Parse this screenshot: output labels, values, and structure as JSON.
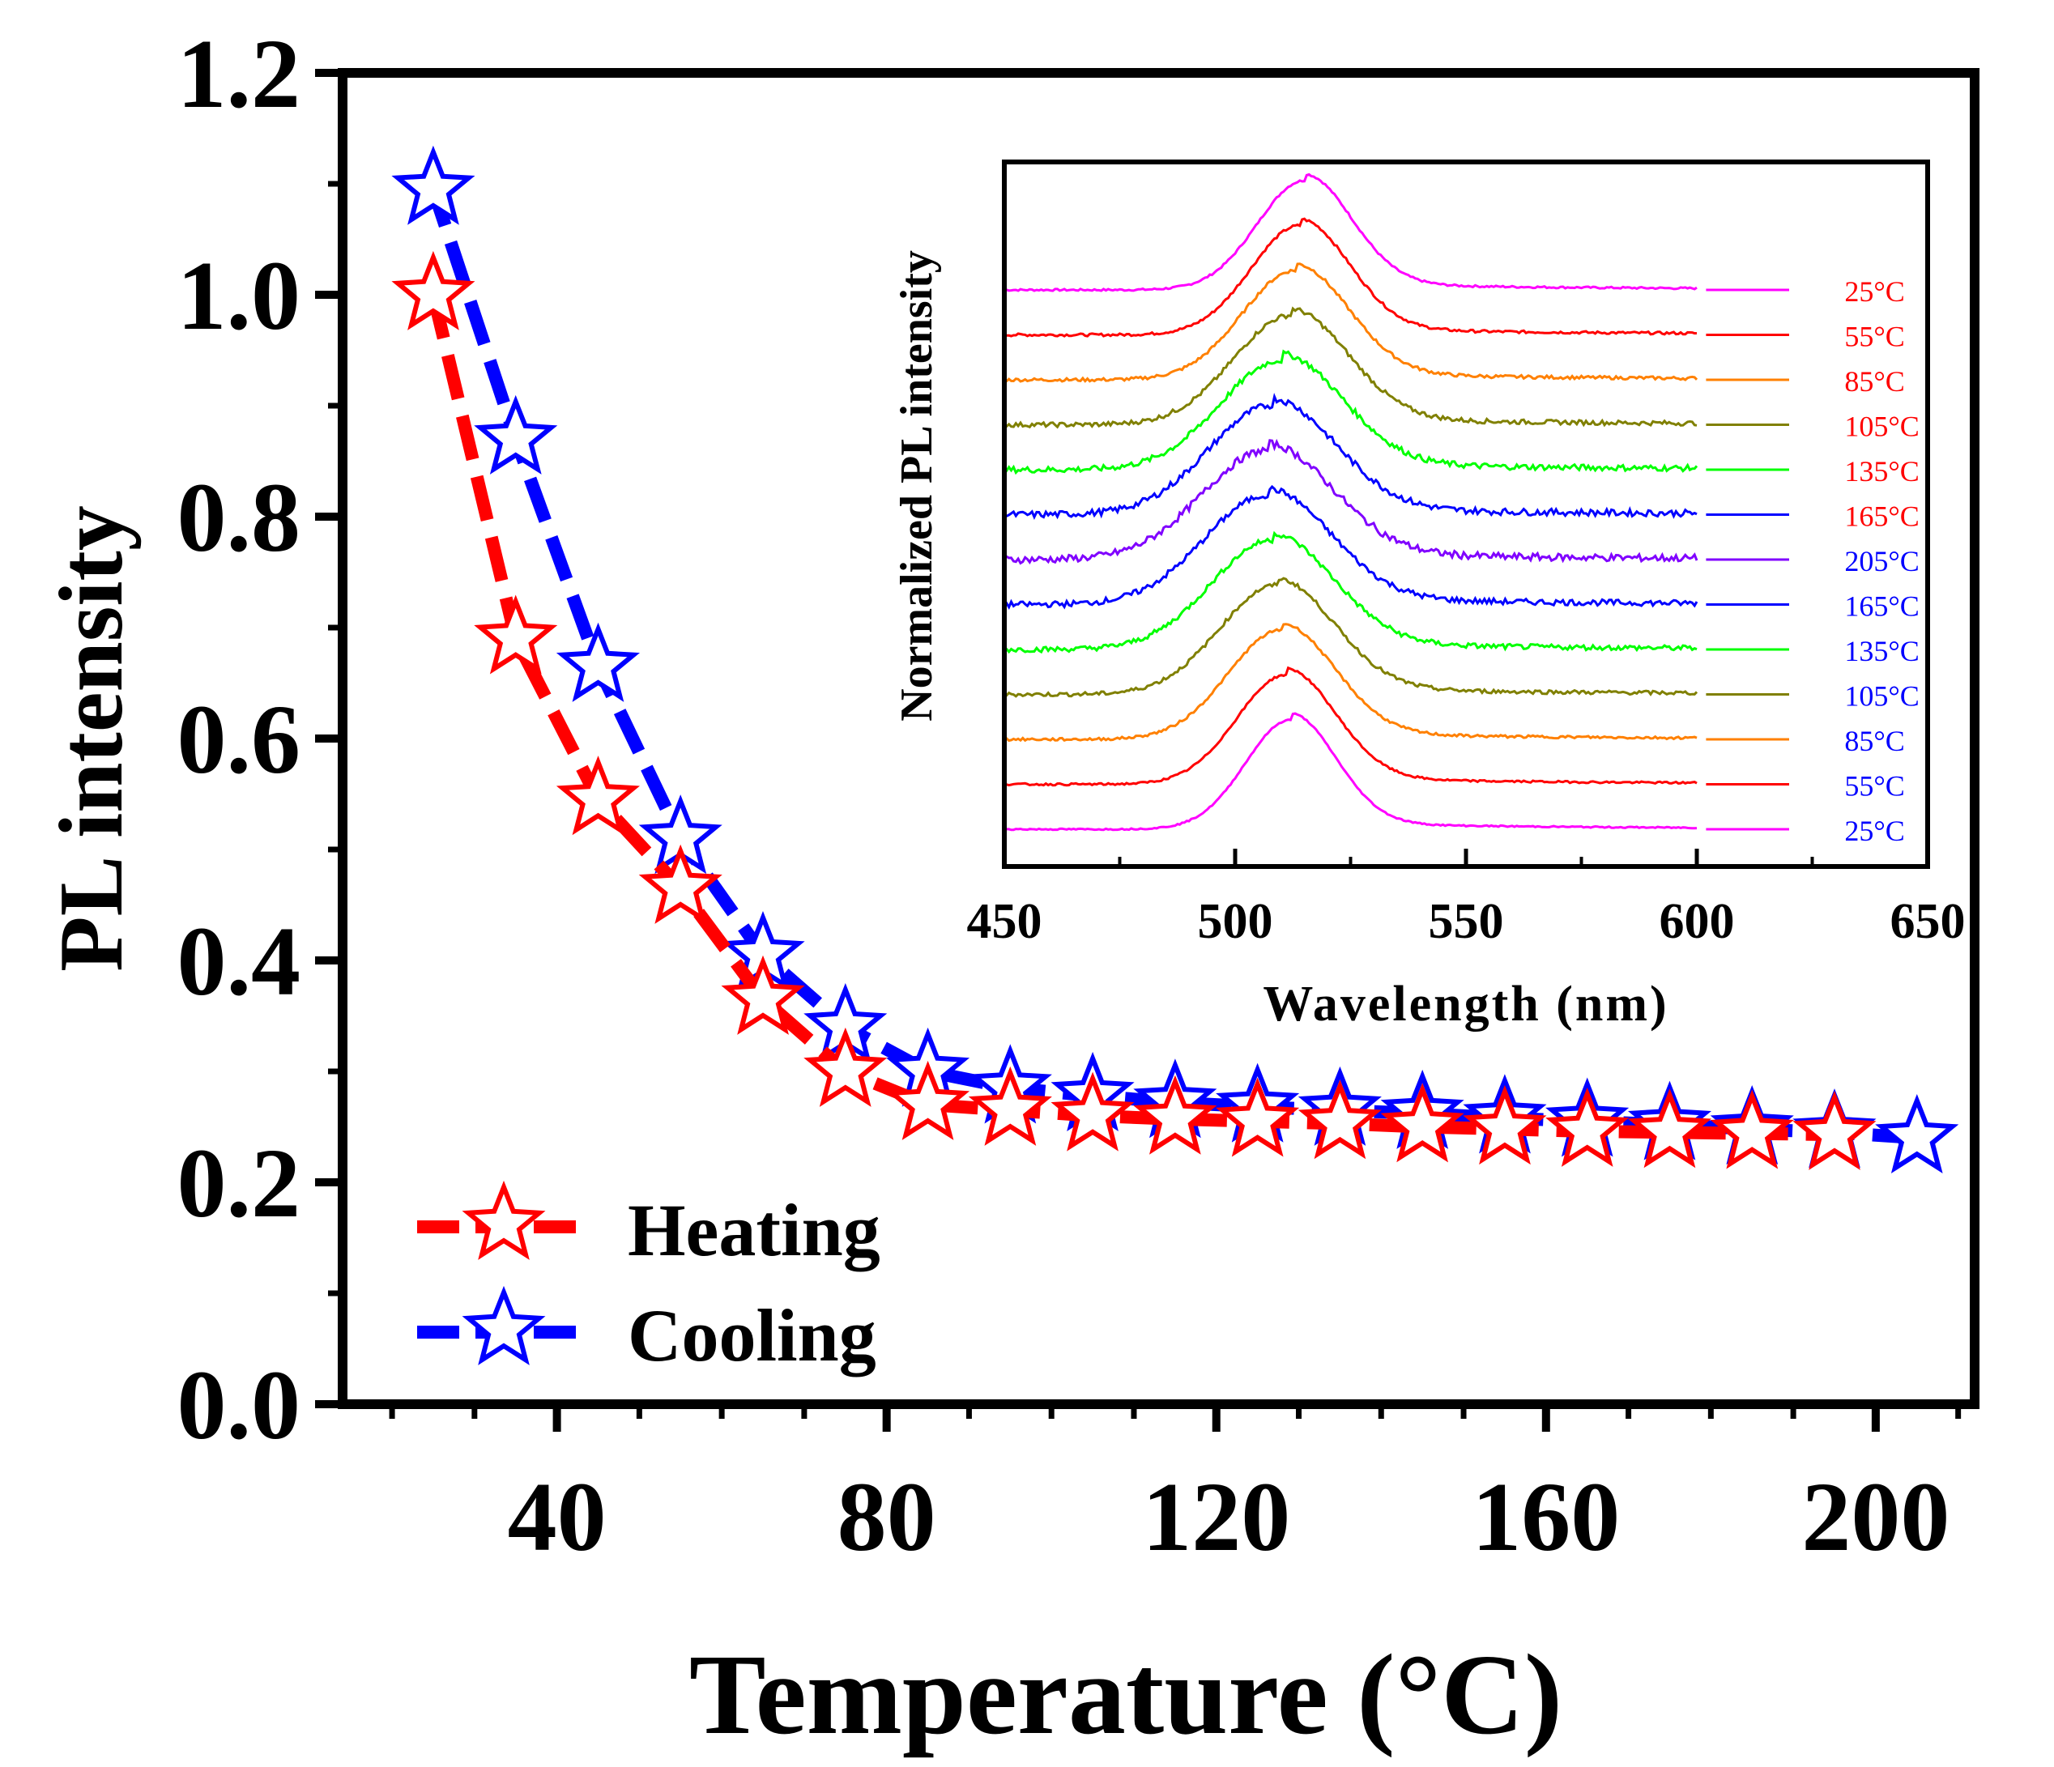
{
  "chart_data": [
    {
      "type": "line",
      "title": "",
      "xlabel": "Temperature (°C)",
      "ylabel": "PL intensity",
      "xlim": [
        14,
        212
      ],
      "ylim": [
        0,
        1.2
      ],
      "xticks": [
        40,
        80,
        120,
        160,
        200
      ],
      "xtick_labels": [
        "40",
        "80",
        "120",
        "160",
        "200"
      ],
      "yticks": [
        0.0,
        0.2,
        0.4,
        0.6,
        0.8,
        1.0,
        1.2
      ],
      "ytick_labels": [
        "0.0",
        "0.2",
        "0.4",
        "0.6",
        "0.8",
        "1.0",
        "1.2"
      ],
      "legend": "bottom-left",
      "marker": "open-star",
      "series": [
        {
          "name": "Heating",
          "color": "#ff0000",
          "x": [
            25,
            35,
            45,
            55,
            65,
            75,
            85,
            95,
            105,
            115,
            125,
            135,
            145,
            155,
            165,
            175,
            185,
            195
          ],
          "y": [
            1.0,
            0.69,
            0.545,
            0.465,
            0.365,
            0.3,
            0.27,
            0.265,
            0.26,
            0.257,
            0.255,
            0.253,
            0.25,
            0.248,
            0.246,
            0.245,
            0.244,
            0.243
          ]
        },
        {
          "name": "Cooling",
          "color": "#0000ff",
          "x": [
            205,
            195,
            185,
            175,
            165,
            155,
            145,
            135,
            125,
            115,
            105,
            95,
            85,
            75,
            65,
            55,
            45,
            35,
            25
          ],
          "y": [
            0.24,
            0.245,
            0.248,
            0.252,
            0.255,
            0.258,
            0.262,
            0.265,
            0.268,
            0.272,
            0.278,
            0.285,
            0.3,
            0.34,
            0.405,
            0.51,
            0.665,
            0.87,
            1.095
          ]
        }
      ]
    },
    {
      "type": "line",
      "title": "",
      "xlabel": "Wavelength (nm)",
      "ylabel": "Normalized PL intensity",
      "xlim": [
        450,
        650
      ],
      "xticks": [
        450,
        500,
        550,
        600,
        650
      ],
      "xtick_labels": [
        "450",
        "500",
        "550",
        "600",
        "650"
      ],
      "spectrum_range_nm": [
        450,
        600
      ],
      "note": "stacked, vertically offset normalized PL spectra at each temperature (top to bottom)",
      "series": [
        {
          "name": "25°C",
          "color": "#ff00ff",
          "label_color": "#ff0000",
          "peak_nm": 515,
          "fwhm_nm": 24,
          "noise": 0.003
        },
        {
          "name": "55°C",
          "color": "#ff0000",
          "label_color": "#ff0000",
          "peak_nm": 514,
          "fwhm_nm": 25,
          "noise": 0.004
        },
        {
          "name": "85°C",
          "color": "#ff8000",
          "label_color": "#ff0000",
          "peak_nm": 513,
          "fwhm_nm": 27,
          "noise": 0.005
        },
        {
          "name": "105°C",
          "color": "#808000",
          "label_color": "#ff0000",
          "peak_nm": 512,
          "fwhm_nm": 29,
          "noise": 0.007
        },
        {
          "name": "135°C",
          "color": "#00ff00",
          "label_color": "#ff0000",
          "peak_nm": 510,
          "fwhm_nm": 31,
          "noise": 0.009
        },
        {
          "name": "165°C",
          "color": "#0000ff",
          "label_color": "#ff0000",
          "peak_nm": 508,
          "fwhm_nm": 32,
          "noise": 0.01
        },
        {
          "name": "205°C",
          "color": "#8000ff",
          "label_color": "#0000ff",
          "peak_nm": 507,
          "fwhm_nm": 33,
          "noise": 0.011
        },
        {
          "name": "165°C",
          "color": "#0000ff",
          "label_color": "#0000ff",
          "peak_nm": 507,
          "fwhm_nm": 32,
          "noise": 0.009
        },
        {
          "name": "135°C",
          "color": "#00ff00",
          "label_color": "#0000ff",
          "peak_nm": 508,
          "fwhm_nm": 31,
          "noise": 0.008
        },
        {
          "name": "105°C",
          "color": "#808000",
          "label_color": "#0000ff",
          "peak_nm": 509,
          "fwhm_nm": 29,
          "noise": 0.006
        },
        {
          "name": "85°C",
          "color": "#ff8000",
          "label_color": "#0000ff",
          "peak_nm": 510,
          "fwhm_nm": 27,
          "noise": 0.004
        },
        {
          "name": "55°C",
          "color": "#ff0000",
          "label_color": "#0000ff",
          "peak_nm": 511,
          "fwhm_nm": 25,
          "noise": 0.003
        },
        {
          "name": "25°C",
          "color": "#ff00ff",
          "label_color": "#0000ff",
          "peak_nm": 512,
          "fwhm_nm": 23,
          "noise": 0.002
        }
      ]
    }
  ]
}
